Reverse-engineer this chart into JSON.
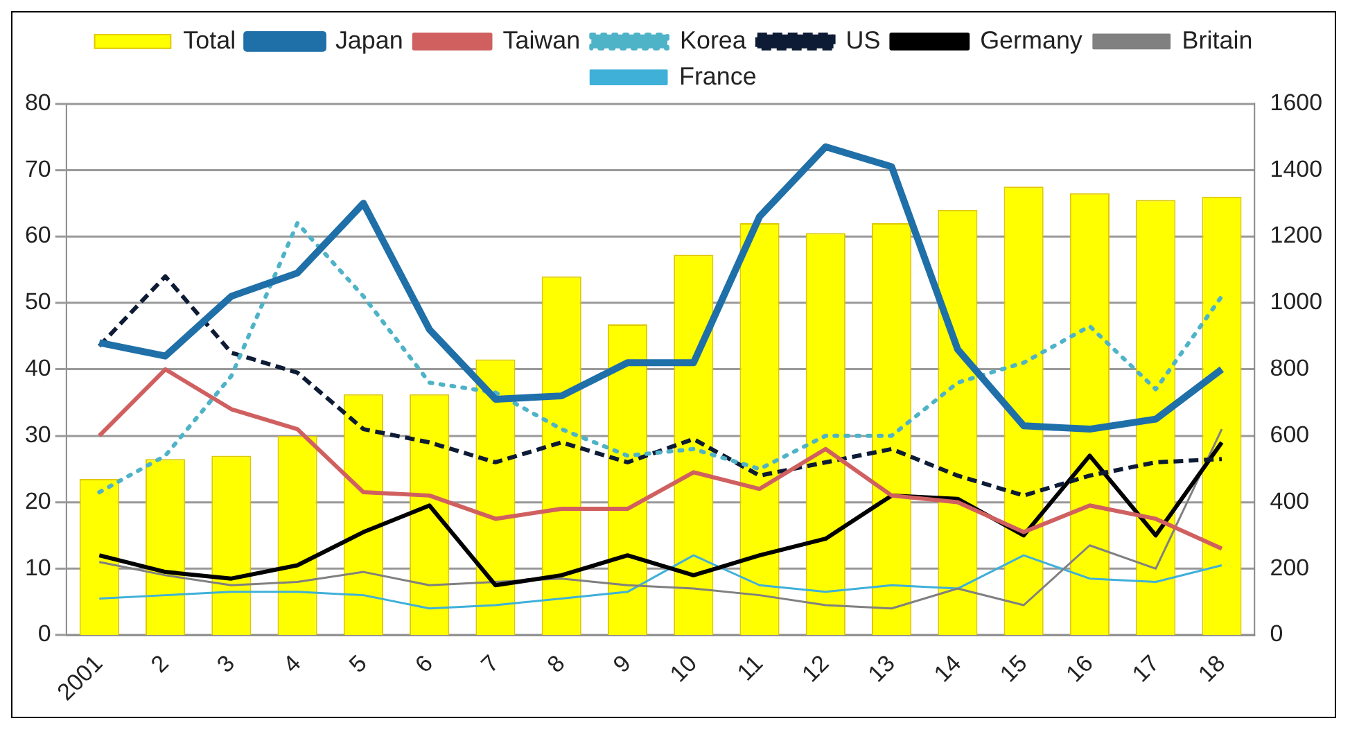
{
  "chart_data": {
    "type": "line",
    "categories": [
      "2001",
      "2",
      "3",
      "4",
      "5",
      "6",
      "7",
      "8",
      "9",
      "10",
      "11",
      "12",
      "13",
      "14",
      "15",
      "16",
      "17",
      "18"
    ],
    "series": [
      {
        "name": "Total",
        "type": "bar",
        "axis": "y2",
        "color": "#ffff00",
        "values": [
          470,
          530,
          540,
          600,
          725,
          725,
          830,
          1080,
          935,
          1145,
          1240,
          1210,
          1240,
          1280,
          1350,
          1330,
          1310,
          1320
        ]
      },
      {
        "name": "Japan",
        "color": "#1f6fa8",
        "line_style": "solid",
        "values": [
          44,
          42,
          51,
          54.5,
          65,
          46,
          35.5,
          36,
          41,
          41,
          63,
          73.5,
          70.5,
          43,
          31.5,
          31,
          32.5,
          40
        ]
      },
      {
        "name": "Taiwan",
        "color": "#d06060",
        "line_style": "solid",
        "values": [
          30,
          40,
          34,
          31,
          21.5,
          21,
          17.5,
          19,
          19,
          24.5,
          22,
          28,
          21,
          20,
          15.5,
          19.5,
          17.5,
          13
        ]
      },
      {
        "name": "Korea",
        "color": "#4fb3c8",
        "line_style": "dotted",
        "values": [
          21.5,
          27,
          39,
          62,
          51,
          38,
          36.5,
          31,
          27,
          28,
          25,
          30,
          30,
          38,
          41,
          46.5,
          37,
          51
        ]
      },
      {
        "name": "US",
        "color": "#0d1b35",
        "line_style": "dashed",
        "values": [
          43.5,
          54,
          42.5,
          39.5,
          31,
          29,
          26,
          29,
          26,
          29.5,
          24,
          26,
          28,
          24,
          21,
          24,
          26,
          26.5
        ]
      },
      {
        "name": "Germany",
        "color": "#000000",
        "line_style": "solid",
        "values": [
          12,
          9.5,
          8.5,
          10.5,
          15.5,
          19.5,
          7.5,
          9,
          12,
          9,
          12,
          14.5,
          21,
          20.5,
          15,
          27,
          15,
          29
        ]
      },
      {
        "name": "Britain",
        "color": "#808080",
        "line_style": "solid",
        "values": [
          11,
          9,
          7.5,
          8,
          9.5,
          7.5,
          8,
          8.5,
          7.5,
          7,
          6,
          4.5,
          4,
          7,
          4.5,
          13.5,
          10,
          31
        ]
      },
      {
        "name": "France",
        "color": "#3fb0d8",
        "line_style": "solid",
        "values": [
          5.5,
          6,
          6.5,
          6.5,
          6,
          4,
          4.5,
          5.5,
          6.5,
          12,
          7.5,
          6.5,
          7.5,
          7,
          12,
          8.5,
          8,
          10.5
        ]
      }
    ],
    "ylim": [
      0,
      80
    ],
    "yticks": [
      0,
      10,
      20,
      30,
      40,
      50,
      60,
      70,
      80
    ],
    "y2lim": [
      0,
      1600
    ],
    "y2ticks": [
      0,
      200,
      400,
      600,
      800,
      1000,
      1200,
      1400,
      1600
    ],
    "grid": "y",
    "legend": "top",
    "marker": "none"
  }
}
